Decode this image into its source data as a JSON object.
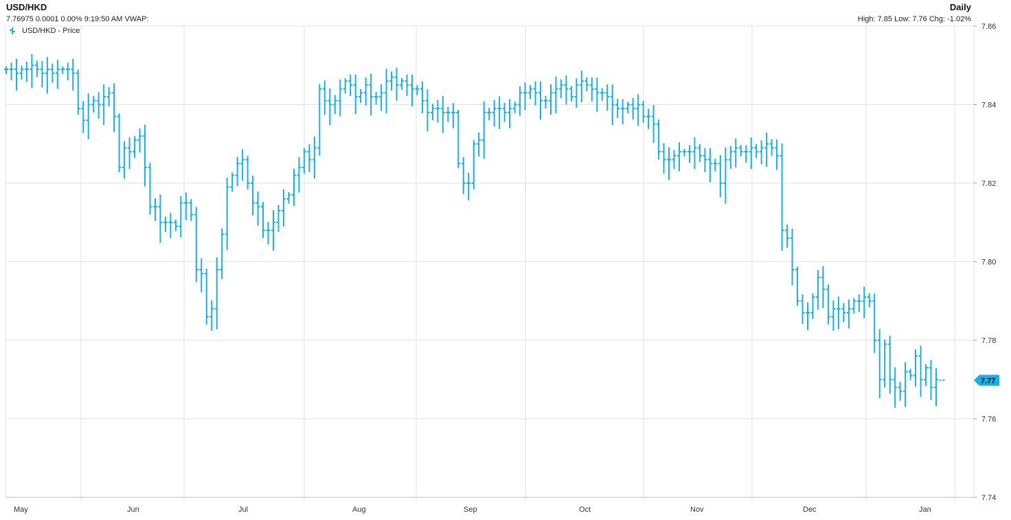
{
  "header": {
    "symbol": "USD/HKD",
    "quote_line": "7.76975 0.0001 0.00% 9:19:50 AM VWAP:",
    "frequency": "Daily",
    "stats_line": "High: 7.85 Low: 7.76 Chg: -1.02%"
  },
  "colors": {
    "series": "#1aaee3",
    "grid": "#e2e2e2",
    "axis_text": "#333333"
  },
  "chart_data": {
    "type": "ohlc",
    "title": "USD/HKD",
    "xlabel": "",
    "ylabel": "",
    "ylim": [
      7.74,
      7.86
    ],
    "y_ticks": [
      "7.86",
      "7.84",
      "7.82",
      "7.80",
      "7.78",
      "7.76",
      "7.74"
    ],
    "x_labels": [
      "May",
      "Jun",
      "Jul",
      "Aug",
      "Sep",
      "Oct",
      "Nov",
      "Dec",
      "Jan"
    ],
    "grid": true,
    "legend": {
      "label": "USD/HKD - Price",
      "position": "top-left"
    },
    "current_value_label": "7.77",
    "current_value": 7.7698,
    "series": [
      {
        "name": "USD/HKD - Price",
        "values": [
          7.849,
          7.849,
          7.848,
          7.849,
          7.849,
          7.85,
          7.849,
          7.848,
          7.849,
          7.848,
          7.849,
          7.849,
          7.849,
          7.848,
          7.839,
          7.836,
          7.84,
          7.841,
          7.84,
          7.842,
          7.843,
          7.837,
          7.824,
          7.829,
          7.828,
          7.831,
          7.832,
          7.824,
          7.814,
          7.814,
          7.81,
          7.81,
          7.81,
          7.809,
          7.815,
          7.815,
          7.812,
          7.798,
          7.797,
          7.786,
          7.788,
          7.798,
          7.807,
          7.819,
          7.822,
          7.825,
          7.826,
          7.82,
          7.815,
          7.814,
          7.808,
          7.808,
          7.81,
          7.813,
          7.816,
          7.817,
          7.822,
          7.824,
          7.828,
          7.826,
          7.829,
          7.844,
          7.841,
          7.84,
          7.841,
          7.844,
          7.846,
          7.845,
          7.842,
          7.843,
          7.845,
          7.842,
          7.842,
          7.843,
          7.846,
          7.847,
          7.845,
          7.846,
          7.845,
          7.844,
          7.844,
          7.841,
          7.838,
          7.839,
          7.839,
          7.838,
          7.838,
          7.838,
          7.825,
          7.82,
          7.82,
          7.83,
          7.831,
          7.838,
          7.838,
          7.839,
          7.839,
          7.838,
          7.839,
          7.84,
          7.843,
          7.843,
          7.844,
          7.843,
          7.841,
          7.841,
          7.843,
          7.844,
          7.845,
          7.844,
          7.842,
          7.845,
          7.846,
          7.845,
          7.844,
          7.843,
          7.843,
          7.842,
          7.84,
          7.839,
          7.839,
          7.84,
          7.839,
          7.84,
          7.837,
          7.837,
          7.835,
          7.828,
          7.826,
          7.826,
          7.827,
          7.828,
          7.828,
          7.828,
          7.829,
          7.827,
          7.826,
          7.825,
          7.825,
          7.82,
          7.826,
          7.828,
          7.829,
          7.828,
          7.828,
          7.829,
          7.828,
          7.829,
          7.83,
          7.829,
          7.827,
          7.808,
          7.806,
          7.798,
          7.79,
          7.787,
          7.787,
          7.791,
          7.796,
          7.793,
          7.786,
          7.788,
          7.788,
          7.787,
          7.788,
          7.79,
          7.79,
          7.791,
          7.79,
          7.78,
          7.77,
          7.779,
          7.77,
          7.768,
          7.767,
          7.772,
          7.771,
          7.776,
          7.77,
          7.773,
          7.768,
          7.77
        ]
      }
    ]
  }
}
